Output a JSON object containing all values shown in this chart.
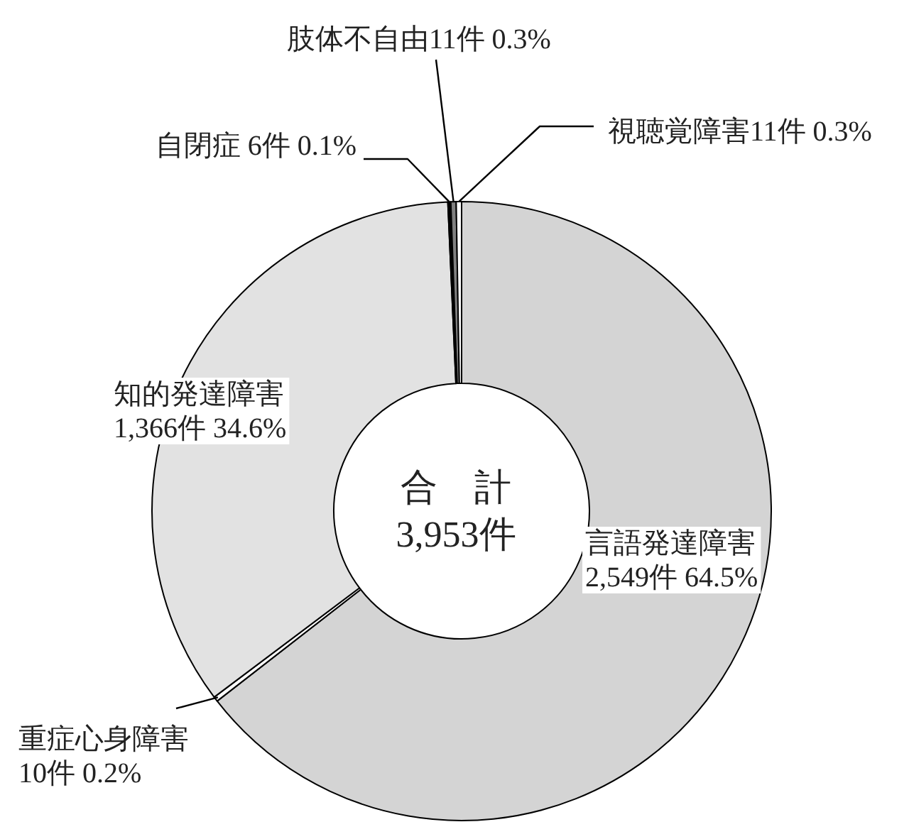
{
  "chart_data": {
    "type": "donut",
    "categories": [
      "言語発達障害",
      "重症心身障害",
      "知的発達障害",
      "自閉症",
      "肢体不自由",
      "視聴覚障害"
    ],
    "values": [
      2549,
      10,
      1366,
      6,
      11,
      11
    ],
    "colors": [
      "#d4d4d4",
      "#ffffff",
      "#e2e2e2",
      "#000000",
      "#808080",
      "#ffffff"
    ],
    "value_labels": [
      "2,549件 64.5%",
      "10件 0.2%",
      "1,366件 34.6%",
      "6件 0.1%",
      "11件 0.3%",
      "11件 0.3%"
    ],
    "annotations": [
      "合　計\n3,953件"
    ]
  }
}
